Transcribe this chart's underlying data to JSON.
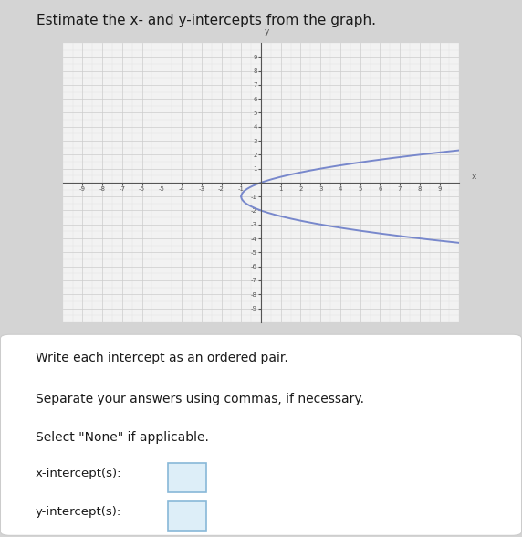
{
  "graph_xlim": [
    -10,
    10
  ],
  "graph_ylim": [
    -10,
    10
  ],
  "graph_xticks": [
    -9,
    -8,
    -7,
    -6,
    -5,
    -4,
    -3,
    -2,
    -1,
    1,
    2,
    3,
    4,
    5,
    6,
    7,
    8,
    9
  ],
  "graph_yticks": [
    -9,
    -8,
    -7,
    -6,
    -5,
    -4,
    -3,
    -2,
    -1,
    1,
    2,
    3,
    4,
    5,
    6,
    7,
    8,
    9
  ],
  "curve_color": "#7888cc",
  "curve_linewidth": 1.4,
  "grid_color": "#cccccc",
  "axis_color": "#555555",
  "label_text_color": "#1a1a1a",
  "bg_outer": "#d4d4d4",
  "bg_graph": "#f2f2f2",
  "bg_bottom": "#f8f8f8",
  "title_text": "Estimate the x- and y-intercepts from the graph.",
  "instructions": [
    "Write each intercept as an ordered pair.",
    "Separate your answers using commas, if necessary.",
    "Select \"None\" if applicable."
  ],
  "x_intercept_label": "x-intercept(s):",
  "y_intercept_label": "y-intercept(s):",
  "parabola_t_min": -10,
  "parabola_t_max": 10
}
